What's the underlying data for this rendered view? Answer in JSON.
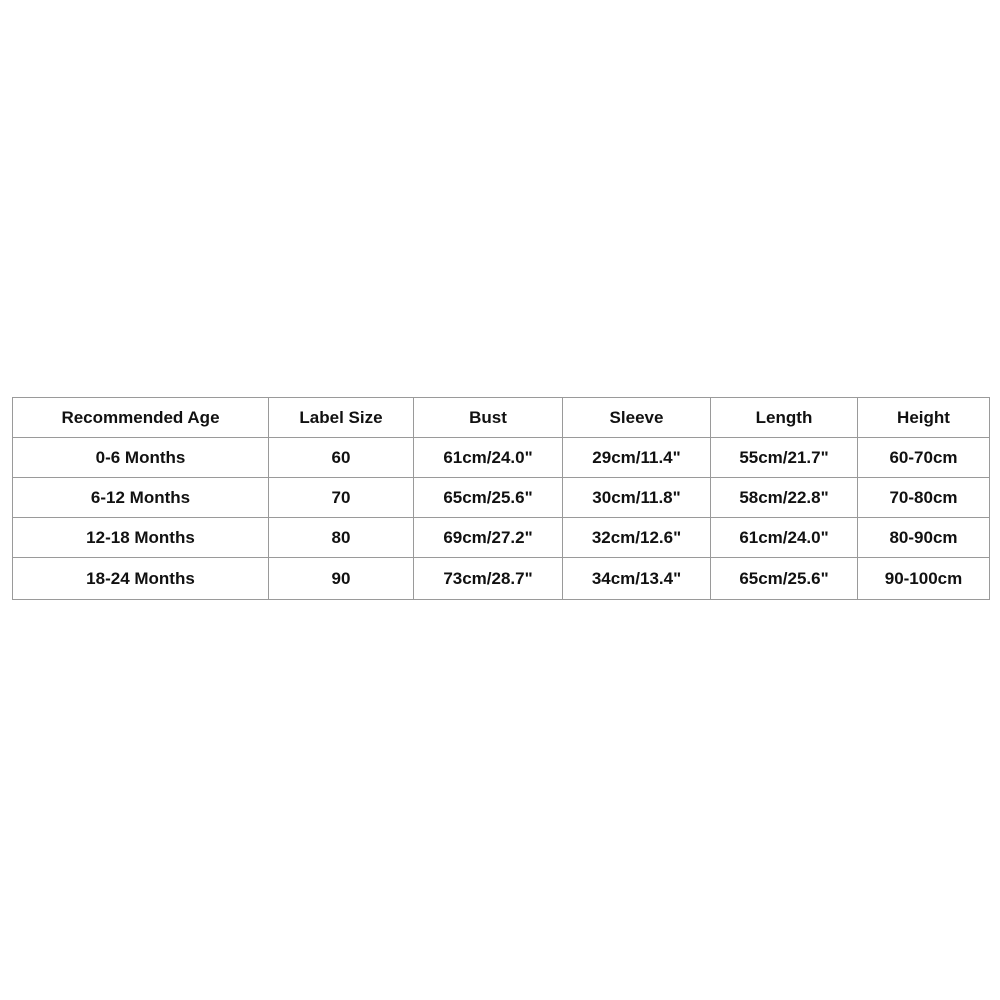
{
  "table": {
    "headers": [
      "Recommended Age",
      "Label Size",
      "Bust",
      "Sleeve",
      "Length",
      "Height"
    ],
    "rows": [
      [
        "0-6 Months",
        "60",
        "61cm/24.0\"",
        "29cm/11.4\"",
        "55cm/21.7\"",
        "60-70cm"
      ],
      [
        "6-12 Months",
        "70",
        "65cm/25.6\"",
        "30cm/11.8\"",
        "58cm/22.8\"",
        "70-80cm"
      ],
      [
        "12-18 Months",
        "80",
        "69cm/27.2\"",
        "32cm/12.6\"",
        "61cm/24.0\"",
        "80-90cm"
      ],
      [
        "18-24 Months",
        "90",
        "73cm/28.7\"",
        "34cm/13.4\"",
        "65cm/25.6\"",
        "90-100cm"
      ]
    ]
  }
}
